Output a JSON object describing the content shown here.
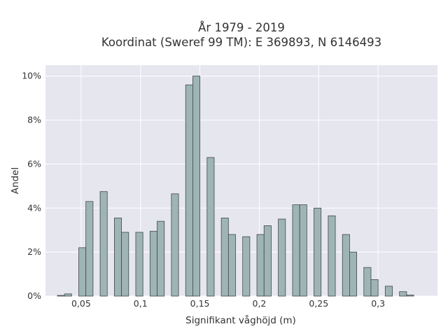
{
  "chart_data": {
    "type": "bar",
    "title": "År 1979 - 2019",
    "subtitle": "Koordinat (Sweref 99 TM): E 369893, N 6146493",
    "xlabel": "Signifikant våghöjd (m)",
    "ylabel": "Andel",
    "xlim": [
      0.02,
      0.35
    ],
    "ylim": [
      0,
      10.5
    ],
    "bin_width": 0.006,
    "xticks": [
      0.05,
      0.1,
      0.15,
      0.2,
      0.25,
      0.3
    ],
    "xtick_labels": [
      "0,05",
      "0,1",
      "0,15",
      "0,2",
      "0,25",
      "0,3"
    ],
    "yticks": [
      0,
      2,
      4,
      6,
      8,
      10
    ],
    "ytick_labels": [
      "0%",
      "2%",
      "4%",
      "6%",
      "8%",
      "10%"
    ],
    "bars": [
      {
        "x": 0.033,
        "value": 0.03
      },
      {
        "x": 0.039,
        "value": 0.1
      },
      {
        "x": 0.051,
        "value": 2.2
      },
      {
        "x": 0.057,
        "value": 4.3
      },
      {
        "x": 0.069,
        "value": 4.75
      },
      {
        "x": 0.081,
        "value": 3.55
      },
      {
        "x": 0.087,
        "value": 2.9
      },
      {
        "x": 0.099,
        "value": 2.9
      },
      {
        "x": 0.111,
        "value": 2.95
      },
      {
        "x": 0.117,
        "value": 3.4
      },
      {
        "x": 0.129,
        "value": 4.65
      },
      {
        "x": 0.141,
        "value": 9.6
      },
      {
        "x": 0.147,
        "value": 10.0
      },
      {
        "x": 0.159,
        "value": 6.3
      },
      {
        "x": 0.171,
        "value": 3.55
      },
      {
        "x": 0.177,
        "value": 2.8
      },
      {
        "x": 0.189,
        "value": 2.7
      },
      {
        "x": 0.201,
        "value": 2.8
      },
      {
        "x": 0.207,
        "value": 3.2
      },
      {
        "x": 0.219,
        "value": 3.5
      },
      {
        "x": 0.231,
        "value": 4.15
      },
      {
        "x": 0.237,
        "value": 4.15
      },
      {
        "x": 0.249,
        "value": 4.0
      },
      {
        "x": 0.261,
        "value": 3.65
      },
      {
        "x": 0.273,
        "value": 2.8
      },
      {
        "x": 0.279,
        "value": 2.0
      },
      {
        "x": 0.291,
        "value": 1.3
      },
      {
        "x": 0.297,
        "value": 0.75
      },
      {
        "x": 0.309,
        "value": 0.45
      },
      {
        "x": 0.321,
        "value": 0.2
      },
      {
        "x": 0.327,
        "value": 0.05
      }
    ],
    "grid": true,
    "colors": {
      "bar_fill": "#9fb5b5",
      "bar_stroke": "#3f4747",
      "plot_bg": "#e6e6ef",
      "grid": "#ffffff"
    }
  }
}
